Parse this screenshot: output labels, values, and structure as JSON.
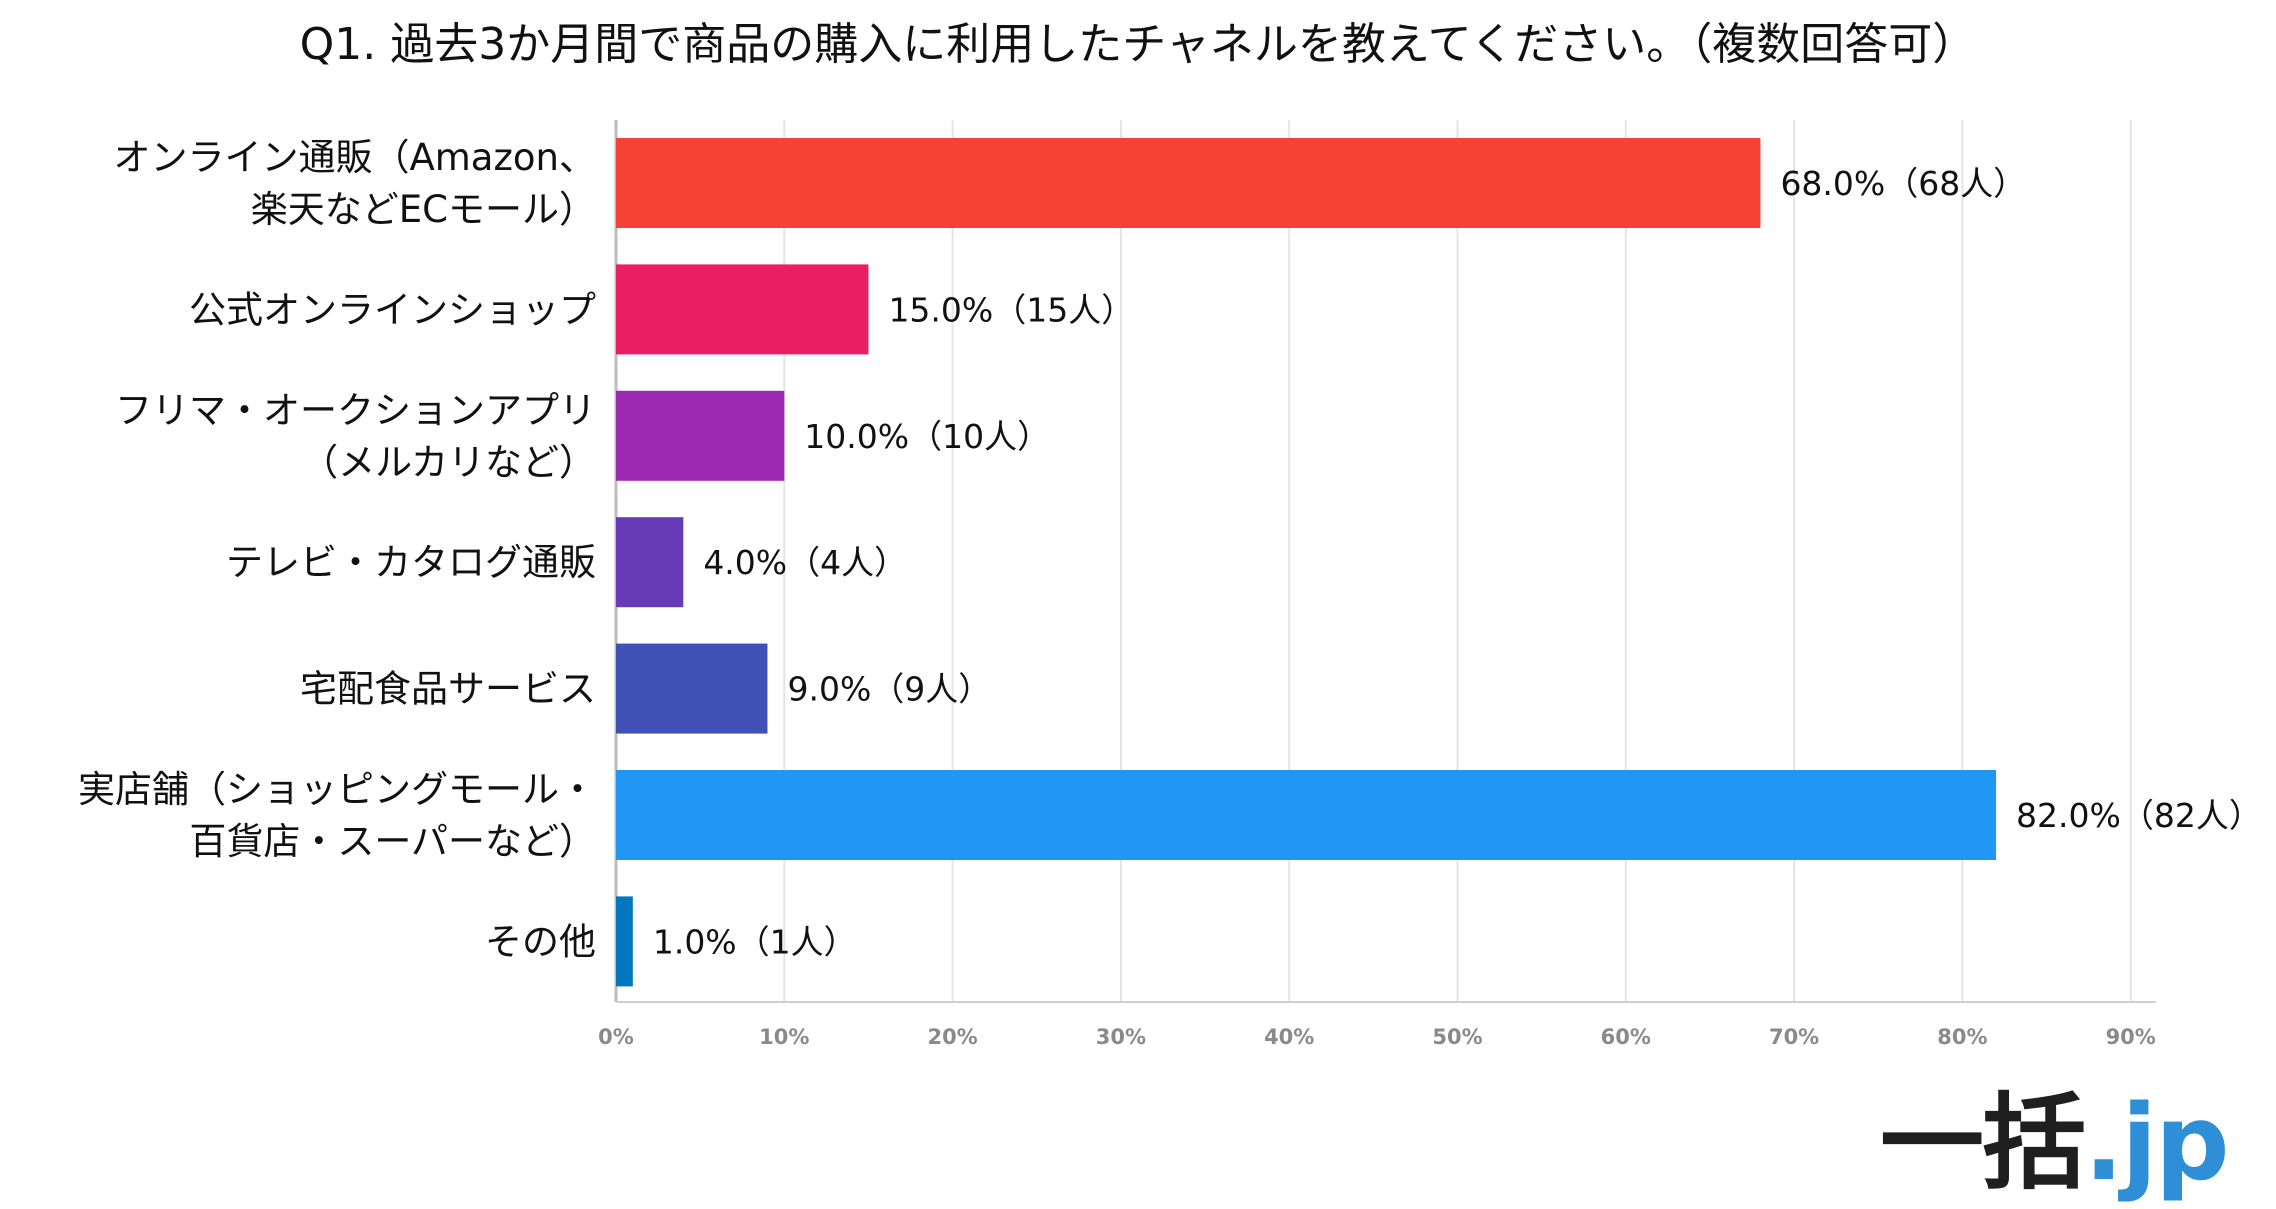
{
  "chart_data": {
    "type": "bar",
    "orientation": "horizontal",
    "title": "Q1. 過去3か月間で商品の購入に利用したチャネルを教えてください。（複数回答可）",
    "categories": [
      [
        "オンライン通販（Amazon、",
        "楽天などECモール）"
      ],
      [
        "公式オンラインショップ"
      ],
      [
        "フリマ・オークションアプリ",
        "（メルカリなど）"
      ],
      [
        "テレビ・カタログ通販"
      ],
      [
        "宅配食品サービス"
      ],
      [
        "実店舗（ショッピングモール・",
        "百貨店・スーパーなど）"
      ],
      [
        "その他"
      ]
    ],
    "values": [
      68.0,
      15.0,
      10.0,
      4.0,
      9.0,
      82.0,
      1.0
    ],
    "data_labels": [
      "68.0%（68人）",
      "15.0%（15人）",
      "10.0%（10人）",
      "4.0%（4人）",
      "9.0%（9人）",
      "82.0%（82人）",
      "1.0%（1人）"
    ],
    "colors": [
      "#f44336",
      "#e91e63",
      "#9c27b0",
      "#673ab7",
      "#3f51b5",
      "#2196f3",
      "#0277bd"
    ],
    "x_ticks": [
      "0%",
      "10%",
      "20%",
      "30%",
      "40%",
      "50%",
      "60%",
      "70%",
      "80%",
      "90%"
    ],
    "xlim": [
      0,
      90
    ],
    "grid": true,
    "legend": "none"
  },
  "logo": {
    "main": "一括",
    "sub": ".jp"
  }
}
